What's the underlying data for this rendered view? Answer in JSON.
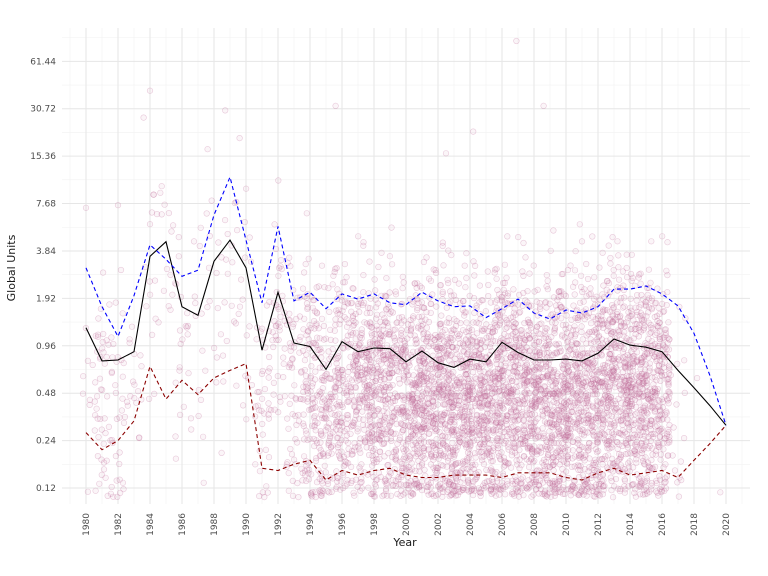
{
  "chart_data": {
    "type": "scatter",
    "title": "",
    "xlabel": "Year",
    "ylabel": "Global Units",
    "y_scale": "log2",
    "xlim": [
      1978.5,
      2021.5
    ],
    "ylim": [
      0.095,
      100
    ],
    "x_ticks": [
      1980,
      1982,
      1984,
      1986,
      1988,
      1990,
      1992,
      1994,
      1996,
      1998,
      2000,
      2002,
      2004,
      2006,
      2008,
      2010,
      2012,
      2014,
      2016,
      2018,
      2020
    ],
    "x_tick_labels": [
      "1980",
      "1982",
      "1984",
      "1986",
      "1988",
      "1990",
      "1992",
      "1994",
      "1996",
      "1998",
      "2000",
      "2002",
      "2004",
      "2006",
      "2008",
      "2010",
      "2012",
      "2014",
      "2016",
      "2018",
      "2020"
    ],
    "y_ticks": [
      0.12,
      0.24,
      0.48,
      0.96,
      1.92,
      3.84,
      7.68,
      15.36,
      30.72,
      61.44
    ],
    "y_tick_labels": [
      "0.12",
      "0.24",
      "0.48",
      "0.96",
      "1.92",
      "3.84",
      "7.68",
      "15.36",
      "30.72",
      "61.44"
    ],
    "grid": true,
    "legend": "none",
    "point_color": "#c06c9a",
    "x": [
      1980,
      1981,
      1982,
      1983,
      1984,
      1985,
      1986,
      1987,
      1988,
      1989,
      1990,
      1991,
      1992,
      1993,
      1994,
      1995,
      1996,
      1997,
      1998,
      1999,
      2000,
      2001,
      2002,
      2003,
      2004,
      2005,
      2006,
      2007,
      2008,
      2009,
      2010,
      2011,
      2012,
      2013,
      2014,
      2015,
      2016,
      2017,
      2018,
      2019,
      2020
    ],
    "series": [
      {
        "key": "mean",
        "color": "#000000",
        "dash": "solid",
        "values": [
          1.25,
          0.77,
          0.78,
          0.88,
          3.55,
          4.4,
          1.7,
          1.5,
          3.3,
          4.5,
          3.0,
          0.9,
          2.1,
          1.0,
          0.95,
          0.68,
          1.02,
          0.88,
          0.93,
          0.92,
          0.76,
          0.89,
          0.75,
          0.7,
          0.79,
          0.76,
          1.01,
          0.87,
          0.78,
          0.78,
          0.79,
          0.77,
          0.86,
          1.06,
          0.97,
          0.94,
          0.88,
          0.67,
          0.52,
          0.4,
          0.3
        ]
      },
      {
        "key": "upper",
        "color": "#0000ff",
        "dash": "dashed",
        "values": [
          3.0,
          1.7,
          1.1,
          2.0,
          4.2,
          3.4,
          2.65,
          2.9,
          6.5,
          11.3,
          4.5,
          1.8,
          5.5,
          1.85,
          2.1,
          1.65,
          2.05,
          1.9,
          2.05,
          1.8,
          1.75,
          2.1,
          1.85,
          1.7,
          1.72,
          1.45,
          1.65,
          1.9,
          1.55,
          1.42,
          1.62,
          1.55,
          1.7,
          2.2,
          2.2,
          2.3,
          2.05,
          1.72,
          1.15,
          0.62,
          0.3
        ]
      },
      {
        "key": "lower",
        "color": "#8b0000",
        "dash": "dashed",
        "values": [
          0.27,
          0.21,
          0.24,
          0.32,
          0.71,
          0.44,
          0.58,
          0.47,
          0.6,
          0.67,
          0.74,
          0.16,
          0.155,
          0.17,
          0.18,
          0.135,
          0.155,
          0.145,
          0.155,
          0.16,
          0.145,
          0.14,
          0.14,
          0.145,
          0.145,
          0.145,
          0.14,
          0.15,
          0.15,
          0.15,
          0.14,
          0.135,
          0.15,
          0.16,
          0.145,
          0.15,
          0.155,
          0.14,
          0.18,
          0.23,
          0.3
        ]
      }
    ],
    "scatter_density": {
      "note_years": [
        1980,
        1981,
        1982,
        1983,
        1984,
        1985,
        1986,
        1987,
        1988,
        1989,
        1990,
        1991,
        1992,
        1993,
        1994,
        1995,
        1996,
        1997,
        1998,
        1999,
        2000,
        2001,
        2002,
        2003,
        2004,
        2005,
        2006,
        2007,
        2008,
        2009,
        2010,
        2011,
        2012,
        2013,
        2014,
        2015,
        2016,
        2017,
        2018,
        2019,
        2020
      ],
      "counts": [
        9,
        46,
        36,
        17,
        14,
        14,
        21,
        16,
        15,
        17,
        16,
        41,
        43,
        60,
        121,
        219,
        263,
        289,
        379,
        338,
        349,
        482,
        829,
        775,
        763,
        941,
        1008,
        1197,
        1428,
        1431,
        1259,
        1139,
        657,
        546,
        582,
        614,
        342,
        16,
        1,
        0,
        1
      ],
      "outliers": [
        {
          "x": 2006.9,
          "y": 82.7
        },
        {
          "x": 1984.0,
          "y": 40.0
        },
        {
          "x": 1988.7,
          "y": 30.0
        },
        {
          "x": 1983.6,
          "y": 27.0
        },
        {
          "x": 1995.6,
          "y": 32.0
        },
        {
          "x": 2008.6,
          "y": 32.0
        },
        {
          "x": 2004.2,
          "y": 22.0
        },
        {
          "x": 1989.6,
          "y": 20.0
        },
        {
          "x": 1987.6,
          "y": 17.0
        },
        {
          "x": 2002.5,
          "y": 16.0
        },
        {
          "x": 1982.0,
          "y": 7.5
        }
      ]
    }
  }
}
